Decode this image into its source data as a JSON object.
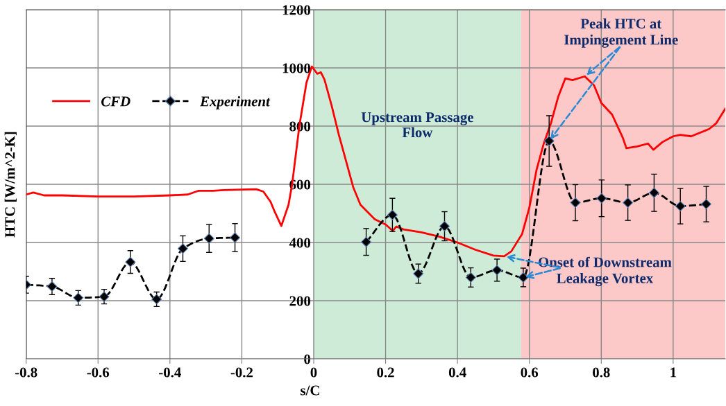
{
  "chart_data": {
    "type": "line",
    "xlabel": "s/C",
    "ylabel": "HTC [W/m^2-K]",
    "xlim": [
      -0.8,
      1.145
    ],
    "ylim": [
      0,
      1200
    ],
    "xticks": [
      {
        "value": -0.8,
        "label": "-0.8"
      },
      {
        "value": -0.6,
        "label": "-0.6"
      },
      {
        "value": -0.4,
        "label": "-0.4"
      },
      {
        "value": -0.2,
        "label": "-0.2"
      },
      0,
      0.2,
      0.4,
      0.6,
      0.8,
      1
    ],
    "yticks": [
      0,
      200,
      400,
      600,
      800,
      1000,
      1200
    ],
    "grid": true,
    "legend": "top left",
    "series": [
      {
        "name": "CFD",
        "color": "#ff0000",
        "line_style": "solid",
        "marker": "none",
        "x": [
          -0.8,
          -0.78,
          -0.75,
          -0.7,
          -0.6,
          -0.5,
          -0.4,
          -0.35,
          -0.32,
          -0.28,
          -0.25,
          -0.2,
          -0.16,
          -0.14,
          -0.12,
          -0.11,
          -0.09,
          -0.07,
          -0.06,
          -0.04,
          -0.02,
          -0.005,
          0.01,
          0.02,
          0.03,
          0.05,
          0.07,
          0.09,
          0.11,
          0.13,
          0.15,
          0.17,
          0.2,
          0.22,
          0.23,
          0.25,
          0.3,
          0.35,
          0.4,
          0.45,
          0.5,
          0.53,
          0.55,
          0.58,
          0.6,
          0.62,
          0.64,
          0.66,
          0.68,
          0.7,
          0.72,
          0.754,
          0.78,
          0.8,
          0.83,
          0.86,
          0.87,
          0.9,
          0.93,
          0.945,
          0.97,
          1.0,
          1.02,
          1.05,
          1.1,
          1.12,
          1.145
        ],
        "values": [
          565,
          572,
          562,
          562,
          558,
          558,
          562,
          565,
          578,
          578,
          580,
          582,
          583,
          575,
          540,
          510,
          457,
          530,
          600,
          800,
          950,
          1005,
          980,
          985,
          960,
          870,
          770,
          680,
          590,
          530,
          505,
          480,
          462,
          440,
          455,
          445,
          435,
          420,
          400,
          375,
          355,
          353,
          370,
          430,
          520,
          650,
          740,
          810,
          900,
          964,
          958,
          971,
          940,
          880,
          840,
          760,
          724,
          730,
          740,
          719,
          745,
          765,
          770,
          765,
          790,
          810,
          860
        ]
      },
      {
        "name": "Experiment",
        "color": "#000000",
        "line_style": "dashed",
        "marker": "diamond",
        "x": [
          -0.8,
          -0.728,
          -0.655,
          -0.583,
          -0.51,
          -0.437,
          -0.364,
          -0.291,
          -0.219,
          0,
          0.146,
          0.219,
          0.291,
          0.364,
          0.437,
          0.51,
          0.583,
          0.655,
          0.728,
          0.801,
          0.874,
          0.947,
          1.02,
          1.092
        ],
        "values": [
          255,
          249,
          210,
          214,
          333,
          205,
          379,
          414,
          417,
          null,
          402,
          495,
          293,
          456,
          280,
          305,
          280,
          749,
          537,
          552,
          537,
          571,
          525,
          532
        ],
        "errors": [
          29,
          28,
          25,
          25,
          39,
          25,
          44,
          48,
          48,
          null,
          46,
          57,
          33,
          50,
          33,
          38,
          32,
          87,
          62,
          63,
          61,
          64,
          61,
          61
        ]
      }
    ],
    "bands": [
      {
        "axis": "x",
        "from": 0,
        "to": 0.577,
        "label": "Upstream Passage\nFlow",
        "color": "#cdebd7"
      },
      {
        "axis": "x",
        "from": 0.577,
        "to": 1.145,
        "label": null,
        "color": "#fcc8c8"
      }
    ],
    "annotations": [
      {
        "text": "Peak HTC at\nImpingement Line",
        "x": 0.754,
        "y": 971
      },
      {
        "text": "Onset of Downstream\nLeakage Vortex",
        "x": 0.53,
        "y": 353
      }
    ]
  }
}
